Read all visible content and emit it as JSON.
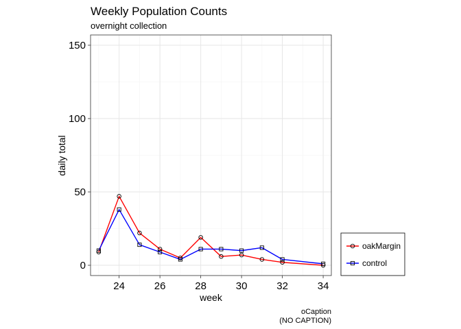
{
  "chart_data": {
    "type": "line",
    "title": "Weekly Population Counts",
    "subtitle": "overnight collection",
    "xlabel": "week",
    "ylabel": "daily total",
    "caption_line1": "oCaption",
    "caption_line2": "(NO CAPTION)",
    "xlim": [
      22.6,
      34.4
    ],
    "ylim": [
      -7,
      157
    ],
    "x_ticks": [
      24,
      26,
      28,
      30,
      32,
      34
    ],
    "y_ticks": [
      0,
      50,
      100,
      150
    ],
    "grid": true,
    "legend_position": "bottom-right",
    "x": [
      23,
      24,
      25,
      26,
      27,
      28,
      29,
      30,
      31,
      32,
      34
    ],
    "series": [
      {
        "name": "oakMargin",
        "color": "#ff0000",
        "marker": "circle",
        "values": [
          9,
          47,
          22,
          11,
          5,
          19,
          6,
          7,
          4,
          2,
          0
        ]
      },
      {
        "name": "control",
        "color": "#0000ff",
        "marker": "square",
        "values": [
          10,
          38,
          14,
          9,
          4,
          11,
          11,
          10,
          12,
          4,
          1
        ]
      }
    ]
  }
}
